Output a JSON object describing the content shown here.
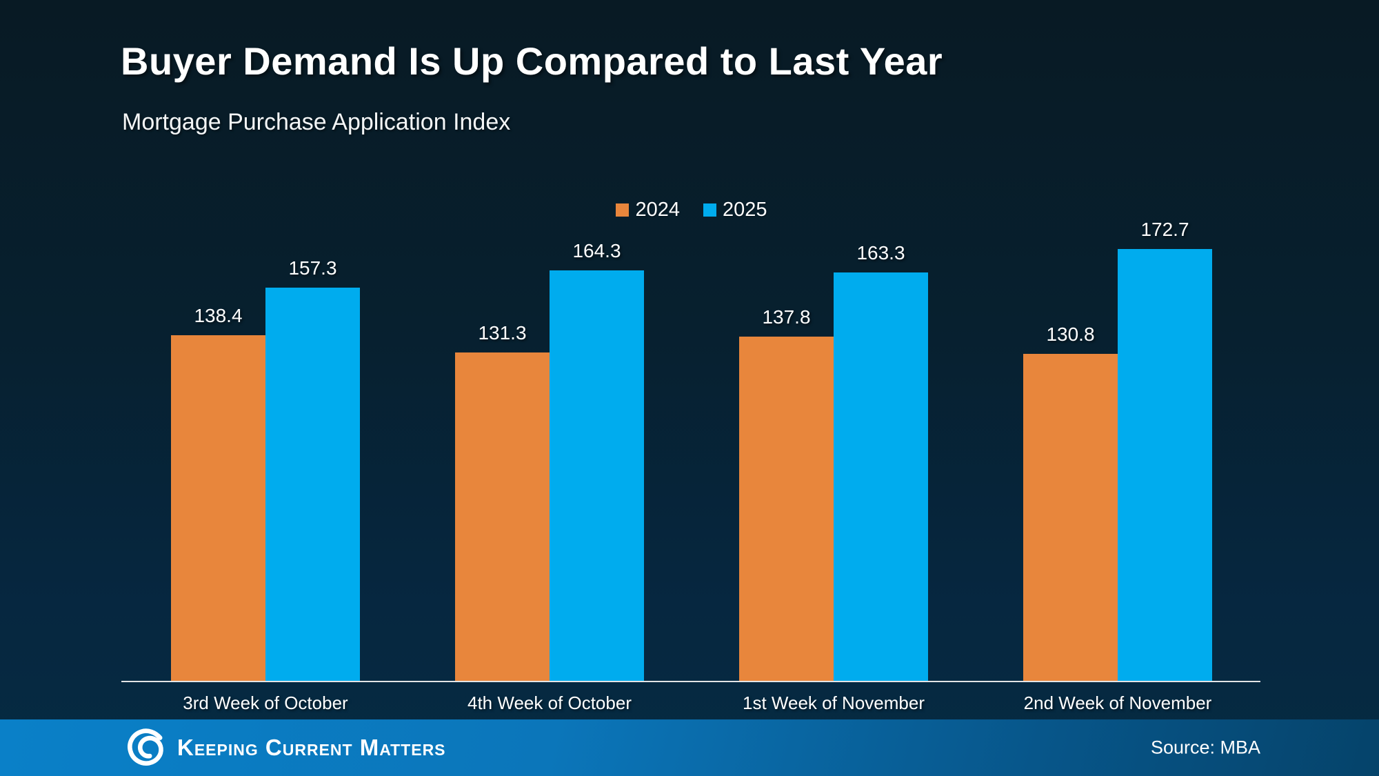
{
  "chart_data": {
    "type": "bar",
    "title": "Buyer Demand Is Up Compared to Last Year",
    "subtitle": "Mortgage Purchase Application Index",
    "categories": [
      "3rd Week of October",
      "4th Week of October",
      "1st Week of November",
      "2nd Week of November"
    ],
    "series": [
      {
        "name": "2024",
        "color": "#E8863C",
        "values": [
          138.4,
          131.3,
          137.8,
          130.8
        ]
      },
      {
        "name": "2025",
        "color": "#00ACEE",
        "values": [
          157.3,
          164.3,
          163.3,
          172.7
        ]
      }
    ],
    "ylim": [
      0,
      180
    ],
    "grid": false,
    "legend_position": "top-center",
    "value_labels": true
  },
  "footer": {
    "brand": "Keeping Current Matters",
    "source": "Source: MBA"
  },
  "colors": {
    "background_top": "#081A24",
    "background_bottom": "#052B42",
    "footer_left": "#0A80C8",
    "footer_right": "#05436A",
    "axis_line": "#E3E5E6",
    "text": "#FFFFFF"
  }
}
